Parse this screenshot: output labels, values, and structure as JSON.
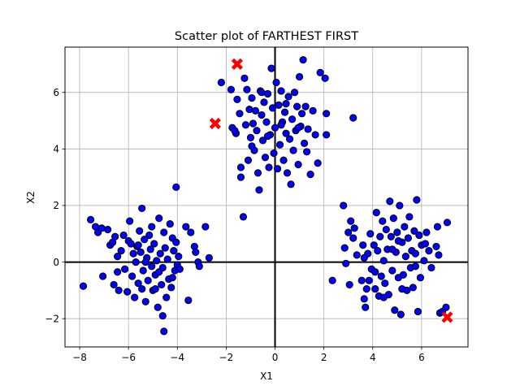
{
  "chart_data": {
    "type": "scatter",
    "title": "Scatter plot of FARTHEST FIRST",
    "xlabel": "X1",
    "ylabel": "X2",
    "xlim": [
      -8.6,
      7.9
    ],
    "ylim": [
      -3.0,
      7.6
    ],
    "xticks": [
      -8,
      -6,
      -4,
      -2,
      0,
      2,
      4,
      6
    ],
    "yticks": [
      -2,
      0,
      2,
      4,
      6
    ],
    "grid": true,
    "colors": {
      "points": "#0000ff",
      "centers": "#ff0000",
      "edge": "#000000",
      "grid": "#b0b0b0"
    },
    "centers": [
      [
        -1.55,
        7.0
      ],
      [
        -2.45,
        4.9
      ],
      [
        7.05,
        -1.95
      ]
    ],
    "series": [
      {
        "values": [
          [
            -7.85,
            -0.85
          ],
          [
            -7.55,
            1.5
          ],
          [
            -7.35,
            1.25
          ],
          [
            -7.25,
            1.05
          ],
          [
            -7.1,
            1.2
          ],
          [
            -7.05,
            -0.5
          ],
          [
            -6.75,
            0.6
          ],
          [
            -6.65,
            0.7
          ],
          [
            -6.6,
            -0.8
          ],
          [
            -6.55,
            0.9
          ],
          [
            -6.45,
            -0.35
          ],
          [
            -6.45,
            0.2
          ],
          [
            -6.4,
            -1.0
          ],
          [
            -6.2,
            0.95
          ],
          [
            -6.15,
            -0.25
          ],
          [
            -6.05,
            -1.05
          ],
          [
            -6.0,
            0.75
          ],
          [
            -5.95,
            1.45
          ],
          [
            -5.9,
            0.65
          ],
          [
            -5.85,
            -0.5
          ],
          [
            -5.8,
            0.3
          ],
          [
            -5.75,
            -1.25
          ],
          [
            -5.7,
            0.0
          ],
          [
            -5.65,
            0.55
          ],
          [
            -5.6,
            -0.75
          ],
          [
            -5.55,
            1.1
          ],
          [
            -5.5,
            0.35
          ],
          [
            -5.45,
            -0.95
          ],
          [
            -5.45,
            1.9
          ],
          [
            -5.4,
            -0.3
          ],
          [
            -5.35,
            0.8
          ],
          [
            -5.3,
            -1.4
          ],
          [
            -5.25,
            0.15
          ],
          [
            -5.2,
            -0.65
          ],
          [
            -5.15,
            0.95
          ],
          [
            -5.1,
            0.45
          ],
          [
            -5.05,
            -0.15
          ],
          [
            -5.05,
            1.25
          ],
          [
            -5.0,
            -1.0
          ],
          [
            -4.95,
            0.65
          ],
          [
            -4.9,
            -0.45
          ],
          [
            -4.85,
            0.05
          ],
          [
            -4.8,
            -1.6
          ],
          [
            -4.75,
            1.55
          ],
          [
            -4.7,
            0.3
          ],
          [
            -4.65,
            -0.8
          ],
          [
            -4.6,
            -0.2
          ],
          [
            -4.55,
            1.05
          ],
          [
            -4.5,
            0.5
          ],
          [
            -4.45,
            -1.25
          ],
          [
            -4.4,
            0.1
          ],
          [
            -4.35,
            -0.6
          ],
          [
            -4.3,
            1.35
          ],
          [
            -4.25,
            -0.9
          ],
          [
            -4.2,
            0.85
          ],
          [
            -4.15,
            0.4
          ],
          [
            -4.1,
            -0.3
          ],
          [
            -4.05,
            0.7
          ],
          [
            -4.05,
            2.65
          ],
          [
            -4.0,
            -0.1
          ],
          [
            -3.95,
            0.2
          ],
          [
            -3.65,
            1.25
          ],
          [
            -3.55,
            -1.35
          ],
          [
            -3.45,
            1.05
          ],
          [
            -3.3,
            0.55
          ],
          [
            -3.15,
            0.0
          ],
          [
            -3.1,
            -0.15
          ],
          [
            -4.6,
            -1.9
          ],
          [
            -4.55,
            -2.45
          ],
          [
            -4.9,
            -0.95
          ],
          [
            -5.6,
            0.6
          ],
          [
            -6.3,
            0.4
          ],
          [
            -6.85,
            1.15
          ],
          [
            -5.3,
            0.0
          ],
          [
            -4.75,
            -0.35
          ],
          [
            -3.9,
            -0.25
          ],
          [
            -3.25,
            0.35
          ],
          [
            -2.85,
            1.25
          ],
          [
            -2.7,
            0.15
          ],
          [
            -4.2,
            -0.55
          ],
          [
            -2.2,
            6.35
          ],
          [
            -1.8,
            6.1
          ],
          [
            -1.75,
            4.75
          ],
          [
            -1.6,
            4.55
          ],
          [
            -1.55,
            5.75
          ],
          [
            -1.45,
            5.25
          ],
          [
            -1.4,
            3.35
          ],
          [
            -1.4,
            3.0
          ],
          [
            -1.3,
            1.6
          ],
          [
            -1.25,
            6.5
          ],
          [
            -1.2,
            4.85
          ],
          [
            -1.15,
            6.1
          ],
          [
            -1.1,
            3.6
          ],
          [
            -1.05,
            5.4
          ],
          [
            -1.0,
            4.4
          ],
          [
            -0.95,
            5.8
          ],
          [
            -0.9,
            4.9
          ],
          [
            -0.85,
            3.95
          ],
          [
            -0.8,
            5.35
          ],
          [
            -0.75,
            4.65
          ],
          [
            -0.7,
            3.15
          ],
          [
            -0.65,
            2.55
          ],
          [
            -0.6,
            6.05
          ],
          [
            -0.55,
            5.2
          ],
          [
            -0.5,
            4.3
          ],
          [
            -0.45,
            5.65
          ],
          [
            -0.4,
            3.7
          ],
          [
            -0.35,
            4.95
          ],
          [
            -0.3,
            5.95
          ],
          [
            -0.25,
            3.35
          ],
          [
            -0.2,
            4.5
          ],
          [
            -0.15,
            6.85
          ],
          [
            -0.1,
            5.45
          ],
          [
            -0.05,
            3.85
          ],
          [
            0.0,
            4.75
          ],
          [
            0.05,
            6.35
          ],
          [
            0.1,
            3.3
          ],
          [
            0.15,
            5.55
          ],
          [
            0.2,
            4.15
          ],
          [
            0.25,
            6.05
          ],
          [
            0.3,
            4.95
          ],
          [
            0.35,
            3.6
          ],
          [
            0.4,
            5.3
          ],
          [
            0.45,
            4.55
          ],
          [
            0.5,
            3.15
          ],
          [
            0.55,
            5.85
          ],
          [
            0.6,
            4.35
          ],
          [
            0.65,
            2.75
          ],
          [
            0.7,
            5.05
          ],
          [
            0.75,
            3.95
          ],
          [
            0.8,
            6.0
          ],
          [
            0.85,
            4.65
          ],
          [
            0.9,
            5.5
          ],
          [
            0.95,
            3.45
          ],
          [
            1.0,
            6.55
          ],
          [
            1.05,
            4.8
          ],
          [
            1.1,
            5.25
          ],
          [
            1.15,
            7.15
          ],
          [
            1.2,
            4.2
          ],
          [
            1.25,
            5.5
          ],
          [
            1.35,
            4.7
          ],
          [
            1.45,
            3.1
          ],
          [
            1.55,
            5.35
          ],
          [
            1.65,
            4.5
          ],
          [
            1.75,
            3.5
          ],
          [
            1.85,
            6.7
          ],
          [
            2.05,
            6.5
          ],
          [
            2.1,
            5.25
          ],
          [
            2.1,
            4.5
          ],
          [
            3.2,
            5.1
          ],
          [
            -0.55,
            6.0
          ],
          [
            -0.95,
            4.1
          ],
          [
            0.25,
            4.85
          ],
          [
            -1.65,
            4.65
          ],
          [
            0.95,
            4.75
          ],
          [
            0.45,
            5.6
          ],
          [
            -0.3,
            4.45
          ],
          [
            1.3,
            3.9
          ],
          [
            2.35,
            -0.65
          ],
          [
            2.8,
            2.0
          ],
          [
            2.85,
            0.5
          ],
          [
            2.9,
            -0.05
          ],
          [
            3.0,
            1.05
          ],
          [
            3.05,
            -0.8
          ],
          [
            3.1,
            1.45
          ],
          [
            3.2,
            0.85
          ],
          [
            3.25,
            1.2
          ],
          [
            3.35,
            0.25
          ],
          [
            3.55,
            -0.65
          ],
          [
            3.6,
            0.6
          ],
          [
            3.65,
            -1.3
          ],
          [
            3.7,
            -1.6
          ],
          [
            3.75,
            -0.95
          ],
          [
            3.8,
            0.3
          ],
          [
            3.85,
            -0.65
          ],
          [
            3.9,
            1.0
          ],
          [
            3.95,
            -0.25
          ],
          [
            4.05,
            0.6
          ],
          [
            4.1,
            -0.95
          ],
          [
            4.15,
            1.75
          ],
          [
            4.2,
            0.4
          ],
          [
            4.25,
            -1.2
          ],
          [
            4.3,
            0.9
          ],
          [
            4.35,
            -0.5
          ],
          [
            4.4,
            1.45
          ],
          [
            4.45,
            0.05
          ],
          [
            4.5,
            -0.75
          ],
          [
            4.55,
            1.15
          ],
          [
            4.6,
            0.45
          ],
          [
            4.65,
            -1.15
          ],
          [
            4.7,
            2.15
          ],
          [
            4.75,
            0.9
          ],
          [
            4.8,
            -0.3
          ],
          [
            4.85,
            1.55
          ],
          [
            4.9,
            -1.7
          ],
          [
            4.95,
            0.35
          ],
          [
            5.0,
            1.05
          ],
          [
            5.05,
            -0.55
          ],
          [
            5.1,
            2.0
          ],
          [
            5.15,
            -1.85
          ],
          [
            5.2,
            0.7
          ],
          [
            5.25,
            -0.45
          ],
          [
            5.3,
            1.25
          ],
          [
            5.35,
            0.2
          ],
          [
            5.4,
            -1.0
          ],
          [
            5.45,
            0.85
          ],
          [
            5.5,
            1.6
          ],
          [
            5.55,
            -0.2
          ],
          [
            5.6,
            0.4
          ],
          [
            5.65,
            -0.9
          ],
          [
            5.7,
            1.1
          ],
          [
            5.75,
            0.3
          ],
          [
            5.8,
            2.2
          ],
          [
            5.85,
            -1.75
          ],
          [
            5.9,
            0.95
          ],
          [
            5.95,
            -0.55
          ],
          [
            6.0,
            0.6
          ],
          [
            6.1,
            0.05
          ],
          [
            6.2,
            1.05
          ],
          [
            6.3,
            0.4
          ],
          [
            6.4,
            -0.2
          ],
          [
            6.6,
            0.55
          ],
          [
            6.65,
            1.25
          ],
          [
            6.7,
            0.25
          ],
          [
            6.75,
            -1.8
          ],
          [
            6.85,
            -1.75
          ],
          [
            7.0,
            -1.6
          ],
          [
            7.05,
            1.4
          ],
          [
            3.65,
            0.15
          ],
          [
            4.1,
            -0.35
          ],
          [
            5.75,
            -0.15
          ],
          [
            5.2,
            -0.95
          ],
          [
            4.8,
            0.45
          ],
          [
            6.15,
            0.65
          ],
          [
            4.45,
            -1.25
          ],
          [
            5.05,
            0.75
          ]
        ]
      }
    ]
  }
}
